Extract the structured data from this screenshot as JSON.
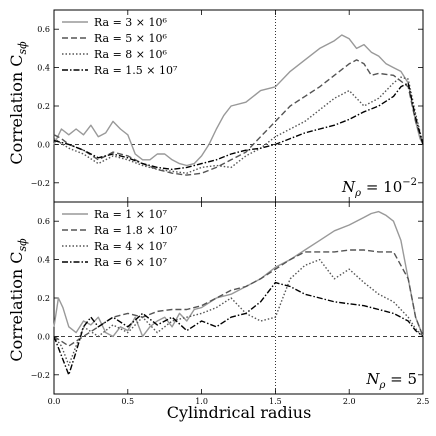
{
  "figure": {
    "xlabel": "Cylindrical radius",
    "ylabel": "Correlation C_{sϕ}",
    "ylabel_main": "Correlation C",
    "ylabel_sub": "sϕ",
    "xticks": [
      "0.0",
      "0.5",
      "1.0",
      "1.5",
      "2.0",
      "2.5"
    ]
  },
  "chart_data": [
    {
      "type": "line",
      "annotation_main": "N",
      "annotation_sub": "ρ",
      "annotation_rest": " = 10",
      "annotation_sup": "−2",
      "xlim": [
        0,
        2.5
      ],
      "ylim": [
        -0.3,
        0.7
      ],
      "yticks": [
        "0.6",
        "0.4",
        "0.2",
        "0.0",
        "−0.2"
      ],
      "ytick_values": [
        0.6,
        0.4,
        0.2,
        0.0,
        -0.2
      ],
      "vline": 1.5,
      "hline": 0.0,
      "legend_position": "top-left",
      "series": [
        {
          "name": "Ra = 3 × 10⁶",
          "style": "solid",
          "color": "#999999",
          "x": [
            0,
            0.05,
            0.1,
            0.15,
            0.2,
            0.25,
            0.3,
            0.35,
            0.4,
            0.45,
            0.5,
            0.55,
            0.6,
            0.65,
            0.7,
            0.75,
            0.8,
            0.85,
            0.9,
            0.95,
            1.0,
            1.05,
            1.1,
            1.15,
            1.2,
            1.3,
            1.4,
            1.5,
            1.6,
            1.7,
            1.8,
            1.9,
            1.95,
            2.0,
            2.05,
            2.1,
            2.15,
            2.2,
            2.25,
            2.3,
            2.35,
            2.4,
            2.45,
            2.48,
            2.5
          ],
          "y": [
            0.0,
            0.08,
            0.05,
            0.08,
            0.05,
            0.1,
            0.04,
            0.06,
            0.12,
            0.08,
            0.05,
            -0.05,
            -0.08,
            -0.08,
            -0.05,
            -0.05,
            -0.08,
            -0.1,
            -0.11,
            -0.1,
            -0.06,
            0.0,
            0.08,
            0.15,
            0.2,
            0.22,
            0.28,
            0.3,
            0.38,
            0.44,
            0.5,
            0.54,
            0.57,
            0.55,
            0.5,
            0.52,
            0.48,
            0.46,
            0.42,
            0.4,
            0.38,
            0.32,
            0.12,
            0.03,
            0.0
          ]
        },
        {
          "name": "Ra = 5 × 10⁶",
          "style": "dashed",
          "color": "#555555",
          "x": [
            0,
            0.05,
            0.1,
            0.2,
            0.3,
            0.4,
            0.5,
            0.6,
            0.7,
            0.8,
            0.9,
            1.0,
            1.1,
            1.2,
            1.3,
            1.4,
            1.5,
            1.6,
            1.7,
            1.8,
            1.9,
            2.0,
            2.05,
            2.1,
            2.15,
            2.2,
            2.3,
            2.4,
            2.45,
            2.5
          ],
          "y": [
            0.05,
            0.03,
            0.0,
            -0.03,
            -0.08,
            -0.04,
            -0.06,
            -0.1,
            -0.13,
            -0.15,
            -0.16,
            -0.15,
            -0.12,
            -0.08,
            -0.04,
            0.04,
            0.12,
            0.2,
            0.25,
            0.3,
            0.36,
            0.42,
            0.44,
            0.42,
            0.36,
            0.37,
            0.36,
            0.3,
            0.12,
            0.0
          ]
        },
        {
          "name": "Ra = 8 × 10⁶",
          "style": "dotted",
          "color": "#555555",
          "x": [
            0,
            0.1,
            0.2,
            0.3,
            0.4,
            0.5,
            0.6,
            0.7,
            0.8,
            0.9,
            1.0,
            1.1,
            1.2,
            1.3,
            1.4,
            1.5,
            1.6,
            1.7,
            1.8,
            1.9,
            2.0,
            2.1,
            2.2,
            2.3,
            2.35,
            2.4,
            2.45,
            2.5
          ],
          "y": [
            0.03,
            -0.02,
            -0.05,
            -0.1,
            -0.06,
            -0.08,
            -0.11,
            -0.13,
            -0.14,
            -0.15,
            -0.12,
            -0.11,
            -0.12,
            -0.06,
            -0.02,
            0.04,
            0.08,
            0.12,
            0.18,
            0.24,
            0.28,
            0.2,
            0.24,
            0.32,
            0.35,
            0.34,
            0.16,
            0.0
          ]
        },
        {
          "name": "Ra = 1.5 × 10⁷",
          "style": "dashdot",
          "color": "#000000",
          "x": [
            0,
            0.1,
            0.2,
            0.3,
            0.4,
            0.5,
            0.6,
            0.7,
            0.8,
            0.9,
            1.0,
            1.1,
            1.2,
            1.3,
            1.4,
            1.5,
            1.6,
            1.7,
            1.8,
            1.9,
            2.0,
            2.1,
            2.2,
            2.3,
            2.35,
            2.4,
            2.45,
            2.5
          ],
          "y": [
            0.02,
            0.0,
            -0.03,
            -0.07,
            -0.05,
            -0.07,
            -0.1,
            -0.12,
            -0.13,
            -0.12,
            -0.1,
            -0.08,
            -0.05,
            -0.03,
            -0.02,
            0.0,
            0.03,
            0.06,
            0.08,
            0.1,
            0.13,
            0.17,
            0.2,
            0.25,
            0.3,
            0.32,
            0.14,
            0.0
          ]
        }
      ]
    },
    {
      "type": "line",
      "annotation_main": "N",
      "annotation_sub": "ρ",
      "annotation_rest": " = 5",
      "annotation_sup": "",
      "xlim": [
        0,
        2.5
      ],
      "ylim": [
        -0.3,
        0.7
      ],
      "yticks": [
        "0.6",
        "0.4",
        "0.2",
        "0.0",
        "−0.2"
      ],
      "ytick_values": [
        0.6,
        0.4,
        0.2,
        0.0,
        -0.2
      ],
      "vline": 1.5,
      "hline": 0.0,
      "legend_position": "top-left",
      "series": [
        {
          "name": "Ra = 1 × 10⁷",
          "style": "solid",
          "color": "#999999",
          "x": [
            0,
            0.03,
            0.06,
            0.1,
            0.15,
            0.2,
            0.25,
            0.3,
            0.35,
            0.4,
            0.45,
            0.5,
            0.55,
            0.6,
            0.65,
            0.7,
            0.75,
            0.8,
            0.85,
            0.9,
            0.95,
            1.0,
            1.1,
            1.2,
            1.3,
            1.4,
            1.5,
            1.6,
            1.7,
            1.8,
            1.9,
            2.0,
            2.1,
            2.15,
            2.2,
            2.25,
            2.3,
            2.35,
            2.4,
            2.45,
            2.5
          ],
          "y": [
            0.05,
            0.2,
            0.15,
            0.05,
            0.02,
            0.08,
            0.06,
            0.1,
            0.02,
            0.0,
            0.05,
            0.03,
            0.1,
            0.0,
            0.05,
            0.08,
            0.1,
            0.05,
            0.12,
            0.08,
            0.14,
            0.15,
            0.2,
            0.22,
            0.26,
            0.3,
            0.36,
            0.4,
            0.45,
            0.5,
            0.55,
            0.58,
            0.62,
            0.64,
            0.65,
            0.63,
            0.6,
            0.5,
            0.3,
            0.1,
            0.0
          ]
        },
        {
          "name": "Ra = 1.8 × 10⁷",
          "style": "dashed",
          "color": "#555555",
          "x": [
            0,
            0.1,
            0.2,
            0.3,
            0.4,
            0.5,
            0.6,
            0.7,
            0.8,
            0.9,
            1.0,
            1.1,
            1.2,
            1.3,
            1.4,
            1.5,
            1.6,
            1.7,
            1.8,
            1.9,
            2.0,
            2.1,
            2.2,
            2.3,
            2.4,
            2.45,
            2.5
          ],
          "y": [
            0.0,
            -0.05,
            0.0,
            0.05,
            0.1,
            0.12,
            0.1,
            0.13,
            0.14,
            0.14,
            0.16,
            0.2,
            0.24,
            0.26,
            0.3,
            0.35,
            0.4,
            0.44,
            0.44,
            0.44,
            0.45,
            0.45,
            0.44,
            0.44,
            0.3,
            0.1,
            0.0
          ]
        },
        {
          "name": "Ra = 4 × 10⁷",
          "style": "dotted",
          "color": "#555555",
          "x": [
            0,
            0.05,
            0.1,
            0.15,
            0.2,
            0.3,
            0.4,
            0.5,
            0.6,
            0.7,
            0.8,
            0.9,
            1.0,
            1.1,
            1.2,
            1.3,
            1.4,
            1.5,
            1.6,
            1.7,
            1.8,
            1.9,
            2.0,
            2.1,
            2.2,
            2.3,
            2.4,
            2.45,
            2.5
          ],
          "y": [
            0.0,
            -0.05,
            -0.15,
            -0.05,
            0.05,
            0.0,
            0.06,
            0.02,
            0.1,
            0.02,
            0.08,
            0.1,
            0.12,
            0.15,
            0.2,
            0.12,
            0.08,
            0.1,
            0.3,
            0.37,
            0.4,
            0.3,
            0.35,
            0.28,
            0.22,
            0.18,
            0.1,
            0.04,
            0.0
          ]
        },
        {
          "name": "Ra = 6 × 10⁷",
          "style": "dashdot",
          "color": "#000000",
          "x": [
            0,
            0.05,
            0.1,
            0.15,
            0.2,
            0.25,
            0.3,
            0.4,
            0.5,
            0.6,
            0.7,
            0.8,
            0.9,
            1.0,
            1.1,
            1.2,
            1.3,
            1.4,
            1.5,
            1.6,
            1.7,
            1.8,
            1.9,
            2.0,
            2.1,
            2.2,
            2.3,
            2.4,
            2.45,
            2.5
          ],
          "y": [
            0.0,
            -0.1,
            -0.2,
            -0.08,
            0.05,
            0.1,
            0.05,
            0.1,
            0.05,
            0.12,
            0.06,
            0.1,
            0.03,
            0.08,
            0.05,
            0.1,
            0.12,
            0.18,
            0.28,
            0.26,
            0.22,
            0.2,
            0.18,
            0.17,
            0.16,
            0.14,
            0.12,
            0.08,
            0.03,
            0.0
          ]
        }
      ]
    }
  ]
}
